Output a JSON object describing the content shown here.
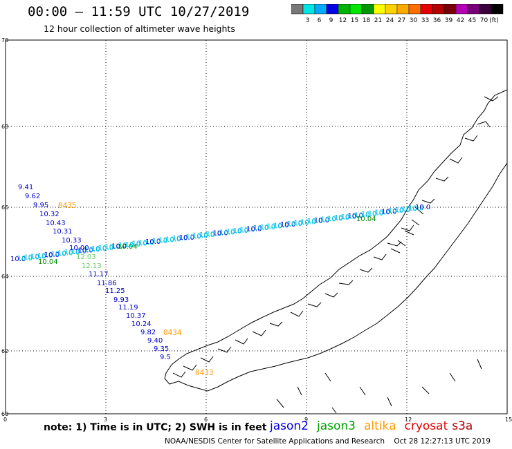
{
  "header": {
    "title": "00:00 – 11:59 UTC 10/27/2019",
    "subtitle": "12 hour collection of altimeter wave heights"
  },
  "colorbar": {
    "colors": [
      "#787878",
      "#00e6e6",
      "#00aaff",
      "#0000e6",
      "#00b400",
      "#00e600",
      "#009600",
      "#ffff00",
      "#ffd200",
      "#ffaa00",
      "#ff6e00",
      "#e60000",
      "#b40000",
      "#780000",
      "#b400b4",
      "#780078",
      "#3c003c",
      "#000000"
    ],
    "labels": [
      "3",
      "6",
      "9",
      "12",
      "15",
      "18",
      "21",
      "24",
      "27",
      "30",
      "33",
      "36",
      "39",
      "42",
      "45",
      "70"
    ],
    "unit": "(ft)"
  },
  "axes": {
    "lat_ticks": [
      "70",
      "68",
      "66",
      "64",
      "62",
      "60"
    ],
    "lon_ticks": [
      "0",
      "3",
      "6",
      "9",
      "12",
      "15"
    ]
  },
  "labels": {
    "jason2_values": [
      "9.41",
      "9.62",
      "9.95",
      "10.32",
      "10.43",
      "10.31",
      "10.33",
      "10.00",
      "11.17",
      "11.86",
      "11.25",
      "9.93",
      "11.19",
      "10.37",
      "10.24",
      "9.82",
      "9.40",
      "9.35",
      "9.5"
    ],
    "jason2_colors": [
      "#0000cc",
      "#0000cc",
      "#0000cc",
      "#0000cc",
      "#0000cc",
      "#0000cc",
      "#0000cc",
      "#0000cc",
      "#0000cc",
      "#0000cc",
      "#0000cc",
      "#0000cc",
      "#0000cc",
      "#0000cc",
      "#0000cc",
      "#0000cc",
      "#0000cc",
      "#0000cc",
      "#0000cc"
    ],
    "jason3_values": [
      "12.03",
      "12.13"
    ],
    "times": [
      "0435",
      "0434",
      "0433"
    ]
  },
  "footer": {
    "note": "note: 1) Time is in UTC; 2) SWH is in feet",
    "legend": [
      {
        "name": "jason2",
        "color": "#0000e6"
      },
      {
        "name": "jason3",
        "color": "#00a000"
      },
      {
        "name": "altika",
        "color": "#ff9900"
      },
      {
        "name": "cryosat",
        "color": "#e60000"
      },
      {
        "name": "s3a",
        "color": "#b40000"
      }
    ],
    "credit": "NOAA/NESDIS Center for Satellite Applications and Research    Oct 28 12:27:13 UTC 2019"
  }
}
